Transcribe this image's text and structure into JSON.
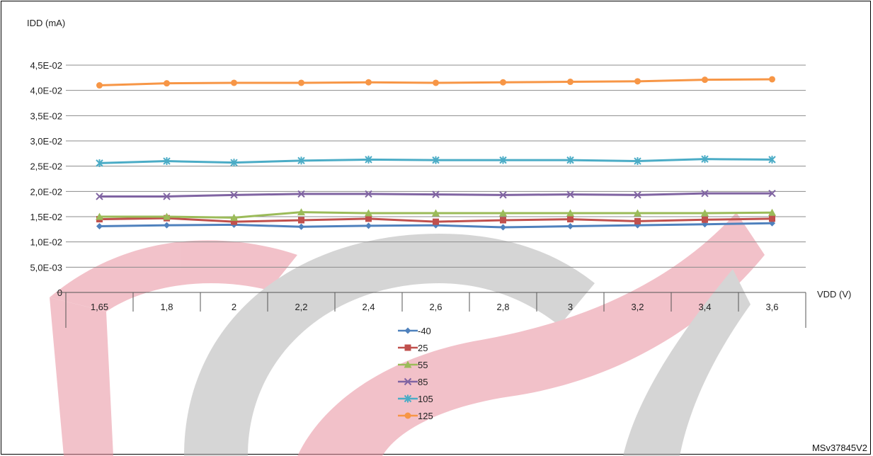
{
  "figure_id": "MSv37845V2",
  "chart_data": {
    "type": "line",
    "title": "",
    "ylabel": "IDD (mA)",
    "xlabel": "VDD (V)",
    "x": [
      "1,65",
      "1,8",
      "2",
      "2,2",
      "2,4",
      "2,6",
      "2,8",
      "3",
      "3,2",
      "3,4",
      "3,6"
    ],
    "ylim": [
      0,
      0.045
    ],
    "yticks": [
      {
        "value": 0,
        "label": "0"
      },
      {
        "value": 0.005,
        "label": "5,0E-03"
      },
      {
        "value": 0.01,
        "label": "1,0E-02"
      },
      {
        "value": 0.015,
        "label": "1,5E-02"
      },
      {
        "value": 0.02,
        "label": "2,0E-02"
      },
      {
        "value": 0.025,
        "label": "2,5E-02"
      },
      {
        "value": 0.03,
        "label": "3,0E-02"
      },
      {
        "value": 0.035,
        "label": "3,5E-02"
      },
      {
        "value": 0.04,
        "label": "4,0E-02"
      },
      {
        "value": 0.045,
        "label": "4,5E-02"
      }
    ],
    "grid": "horizontal",
    "legend_position": "bottom-center",
    "series": [
      {
        "name": "-40",
        "color": "#4F81BD",
        "marker": "diamond",
        "values": [
          0.0131,
          0.0133,
          0.0134,
          0.013,
          0.0132,
          0.0133,
          0.0129,
          0.0131,
          0.0133,
          0.0135,
          0.0137
        ]
      },
      {
        "name": "25",
        "color": "#C0504D",
        "marker": "square",
        "values": [
          0.0145,
          0.0147,
          0.014,
          0.0143,
          0.0146,
          0.014,
          0.0143,
          0.0145,
          0.0141,
          0.0144,
          0.0146
        ]
      },
      {
        "name": "55",
        "color": "#9BBB59",
        "marker": "triangle",
        "values": [
          0.015,
          0.015,
          0.0148,
          0.0159,
          0.0157,
          0.0157,
          0.0157,
          0.0157,
          0.0157,
          0.0157,
          0.0158
        ]
      },
      {
        "name": "85",
        "color": "#8064A2",
        "marker": "x",
        "values": [
          0.019,
          0.019,
          0.0193,
          0.0195,
          0.0195,
          0.0194,
          0.0193,
          0.0194,
          0.0193,
          0.0196,
          0.0196
        ]
      },
      {
        "name": "105",
        "color": "#4BACC6",
        "marker": "star",
        "values": [
          0.0256,
          0.026,
          0.0257,
          0.0261,
          0.0263,
          0.0262,
          0.0262,
          0.0262,
          0.026,
          0.0264,
          0.0263
        ]
      },
      {
        "name": "125",
        "color": "#F79646",
        "marker": "circle",
        "values": [
          0.041,
          0.0414,
          0.0415,
          0.0415,
          0.0416,
          0.0415,
          0.0416,
          0.0417,
          0.0418,
          0.0421,
          0.0422
        ]
      }
    ]
  }
}
